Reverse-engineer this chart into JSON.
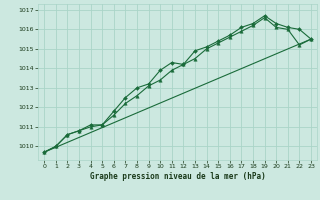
{
  "title": "Graphe pression niveau de la mer (hPa)",
  "background_color": "#cce8e0",
  "grid_color": "#aad4c8",
  "line_color": "#1a6b3a",
  "text_color": "#1a3a1a",
  "xlim": [
    -0.5,
    23.5
  ],
  "ylim": [
    1009.3,
    1017.3
  ],
  "xticks": [
    0,
    1,
    2,
    3,
    4,
    5,
    6,
    7,
    8,
    9,
    10,
    11,
    12,
    13,
    14,
    15,
    16,
    17,
    18,
    19,
    20,
    21,
    22,
    23
  ],
  "yticks": [
    1010,
    1011,
    1012,
    1013,
    1014,
    1015,
    1016,
    1017
  ],
  "series1_x": [
    0,
    1,
    2,
    3,
    4,
    5,
    6,
    7,
    8,
    9,
    10,
    11,
    12,
    13,
    14,
    15,
    16,
    17,
    18,
    19,
    20,
    21,
    22,
    23
  ],
  "series1_y": [
    1009.7,
    1010.0,
    1010.6,
    1010.8,
    1011.0,
    1011.1,
    1011.6,
    1012.2,
    1012.6,
    1013.1,
    1013.4,
    1013.9,
    1014.2,
    1014.5,
    1015.0,
    1015.3,
    1015.6,
    1015.9,
    1016.2,
    1016.6,
    1016.1,
    1016.0,
    1015.2,
    1015.5
  ],
  "series2_x": [
    0,
    1,
    2,
    3,
    4,
    5,
    6,
    7,
    8,
    9,
    10,
    11,
    12,
    13,
    14,
    15,
    16,
    17,
    18,
    19,
    20,
    21,
    22,
    23
  ],
  "series2_y": [
    1009.7,
    1010.0,
    1010.6,
    1010.8,
    1011.1,
    1011.1,
    1011.8,
    1012.5,
    1013.0,
    1013.2,
    1013.9,
    1014.3,
    1014.2,
    1014.9,
    1015.1,
    1015.4,
    1015.7,
    1016.1,
    1016.3,
    1016.7,
    1016.3,
    1016.1,
    1016.0,
    1015.5
  ],
  "series3_x": [
    0,
    23
  ],
  "series3_y": [
    1009.7,
    1015.5
  ]
}
